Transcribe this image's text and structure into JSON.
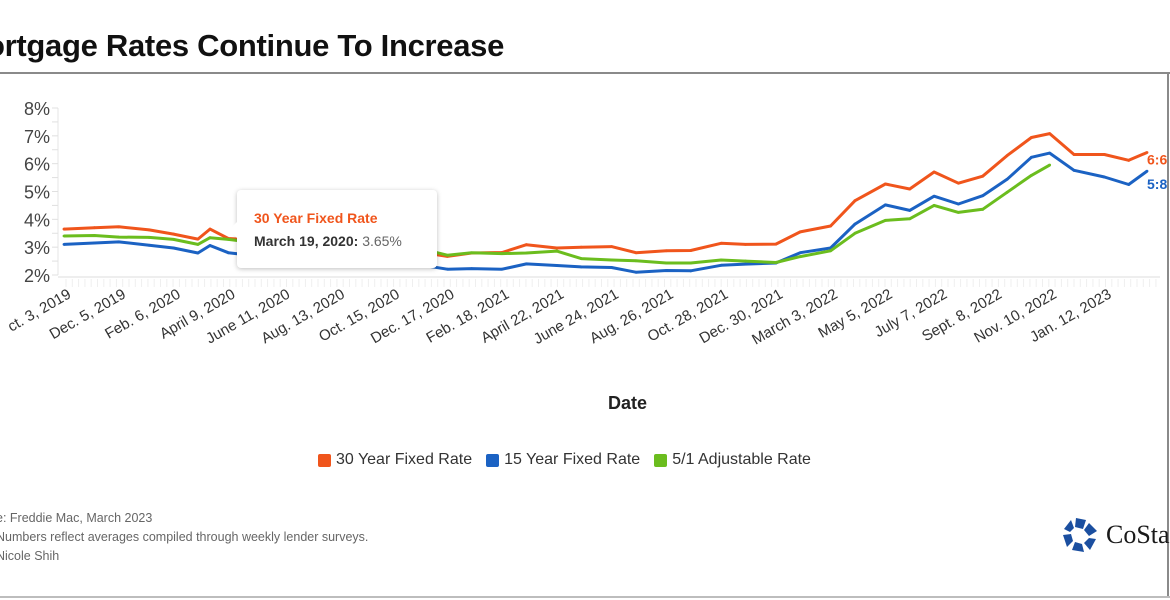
{
  "chart_data": {
    "type": "line",
    "title": "ortgage Rates Continue To Increase",
    "xlabel": "Date",
    "ylabel": "",
    "ylim": [
      2,
      8
    ],
    "yticks": [
      "2%",
      "3%",
      "4%",
      "5%",
      "6%",
      "7%",
      "8%"
    ],
    "ytick_values": [
      2,
      3,
      4,
      5,
      6,
      7,
      8
    ],
    "grid": false,
    "legend_position": "bottom",
    "xtick_labels": [
      "ct. 3, 2019",
      "Dec. 5, 2019",
      "Feb. 6, 2020",
      "April 9, 2020",
      "June 11, 2020",
      "Aug. 13, 2020",
      "Oct. 15, 2020",
      "Dec. 17, 2020",
      "Feb. 18, 2021",
      "April 22, 2021",
      "June 24, 2021",
      "Aug. 26, 2021",
      "Oct. 28, 2021",
      "Dec. 30, 2021",
      "March 3, 2022",
      "May 5, 2022",
      "July 7, 2022",
      "Sept. 8, 2022",
      "Nov. 10, 2022",
      "Jan. 12, 2023"
    ],
    "xtick_dates": [
      "2019-10-03",
      "2019-12-05",
      "2020-02-06",
      "2020-04-09",
      "2020-06-11",
      "2020-08-13",
      "2020-10-15",
      "2020-12-17",
      "2021-02-18",
      "2021-04-22",
      "2021-06-24",
      "2021-08-26",
      "2021-10-28",
      "2021-12-30",
      "2022-03-03",
      "2022-05-05",
      "2022-07-07",
      "2022-09-08",
      "2022-11-10",
      "2023-01-12"
    ],
    "x": [
      "2019-10-03",
      "2019-11-07",
      "2019-12-05",
      "2020-01-09",
      "2020-02-06",
      "2020-03-05",
      "2020-03-19",
      "2020-04-09",
      "2020-05-07",
      "2020-06-11",
      "2020-07-09",
      "2020-08-13",
      "2020-09-10",
      "2020-10-15",
      "2020-11-12",
      "2020-12-17",
      "2021-01-14",
      "2021-02-18",
      "2021-03-18",
      "2021-04-22",
      "2021-05-20",
      "2021-06-24",
      "2021-07-22",
      "2021-08-26",
      "2021-09-23",
      "2021-10-28",
      "2021-11-25",
      "2021-12-30",
      "2022-01-27",
      "2022-03-03",
      "2022-03-31",
      "2022-05-05",
      "2022-06-02",
      "2022-06-30",
      "2022-07-28",
      "2022-08-25",
      "2022-09-22",
      "2022-10-20",
      "2022-11-10",
      "2022-12-08",
      "2023-01-12",
      "2023-02-09",
      "2023-03-02"
    ],
    "series": [
      {
        "name": "30 Year Fixed Rate",
        "color": "#f0551c",
        "end_label": "6:6",
        "values": [
          3.65,
          3.7,
          3.73,
          3.62,
          3.47,
          3.29,
          3.65,
          3.31,
          3.26,
          3.16,
          3.03,
          2.96,
          2.86,
          2.81,
          2.84,
          2.67,
          2.79,
          2.81,
          3.09,
          2.97,
          3.0,
          3.02,
          2.8,
          2.87,
          2.88,
          3.14,
          3.1,
          3.11,
          3.55,
          3.76,
          4.67,
          5.27,
          5.09,
          5.7,
          5.3,
          5.55,
          6.29,
          6.94,
          7.08,
          6.33,
          6.33,
          6.12,
          6.4
        ]
      },
      {
        "name": "15 Year Fixed Rate",
        "color": "#1b62c3",
        "end_label": "5:8",
        "values": [
          3.1,
          3.15,
          3.19,
          3.07,
          2.97,
          2.79,
          3.06,
          2.8,
          2.7,
          2.6,
          2.51,
          2.46,
          2.36,
          2.35,
          2.38,
          2.21,
          2.23,
          2.21,
          2.4,
          2.34,
          2.29,
          2.27,
          2.1,
          2.16,
          2.15,
          2.35,
          2.39,
          2.43,
          2.8,
          2.97,
          3.83,
          4.52,
          4.32,
          4.83,
          4.55,
          4.85,
          5.44,
          6.23,
          6.38,
          5.76,
          5.52,
          5.25,
          5.73
        ]
      },
      {
        "name": "5/1 Adjustable Rate",
        "color": "#6bbd1e",
        "values": [
          3.4,
          3.42,
          3.36,
          3.35,
          3.28,
          3.1,
          3.34,
          3.28,
          3.17,
          3.09,
          3.04,
          2.94,
          2.96,
          2.9,
          2.98,
          2.71,
          2.8,
          2.77,
          2.79,
          2.86,
          2.59,
          2.54,
          2.51,
          2.43,
          2.43,
          2.54,
          2.5,
          2.45,
          2.66,
          2.87,
          3.5,
          3.96,
          4.02,
          4.5,
          4.25,
          4.36,
          4.97,
          5.58,
          5.95,
          null,
          null,
          null,
          null
        ]
      }
    ],
    "tooltip": {
      "series": "30 Year Fixed Rate",
      "date": "March 19, 2020:",
      "value": "3.65%"
    }
  },
  "footer": {
    "source": "e: Freddie Mac, March 2023",
    "note": "Numbers reflect averages compiled through weekly lender surveys.",
    "author": "Nicole Shih"
  },
  "logo": {
    "text": "CoSta",
    "color": "#1b4fa0"
  }
}
